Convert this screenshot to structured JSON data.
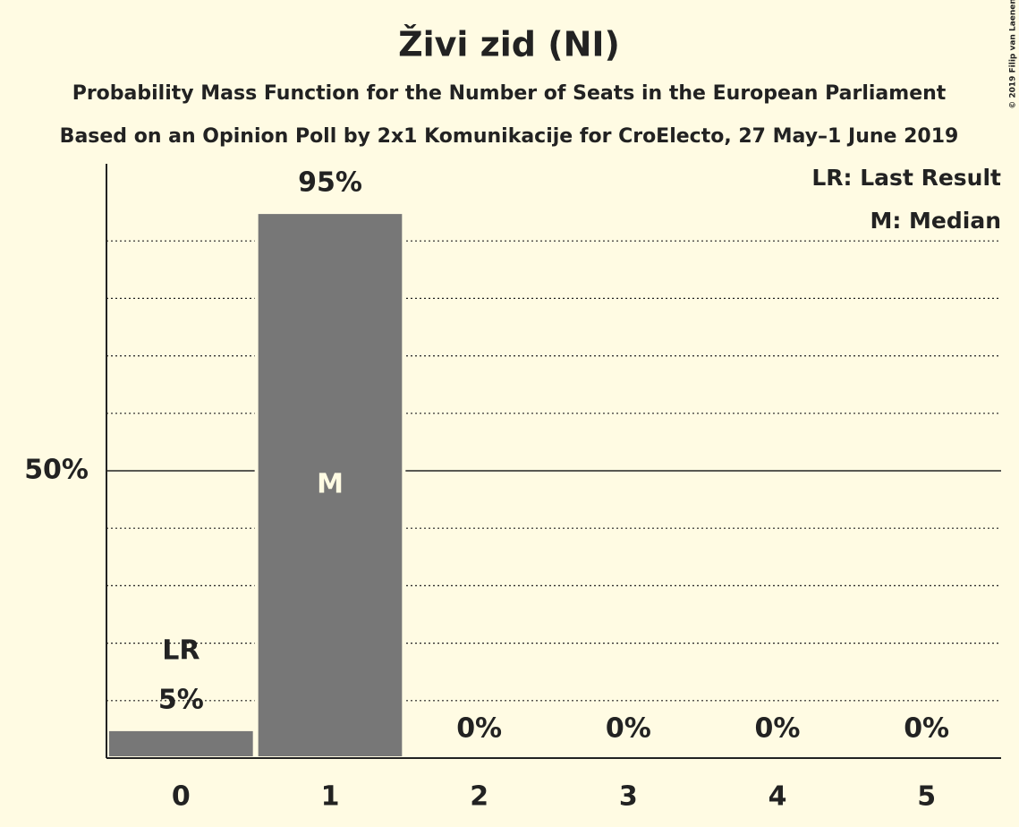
{
  "chart_data": {
    "type": "bar",
    "title": "Živi zid (NI)",
    "subtitle": "Probability Mass Function for the Number of Seats in the European Parliament",
    "subtitle2": "Based on an Opinion Poll by 2x1 Komunikacije for CroElecto, 27 May–1 June 2019",
    "copyright": "© 2019 Filip van Laenen",
    "x": [
      0,
      1,
      2,
      3,
      4,
      5
    ],
    "values": [
      5,
      95,
      0,
      0,
      0,
      0
    ],
    "value_labels": [
      "5%",
      "95%",
      "0%",
      "0%",
      "0%",
      "0%"
    ],
    "color": "#777777",
    "ylim": [
      0,
      100
    ],
    "yticks": [
      {
        "value": 50,
        "label": "50%"
      }
    ],
    "minor_grid": [
      10,
      20,
      30,
      40,
      60,
      70,
      80,
      90
    ],
    "annotations": [
      {
        "label": "LR",
        "x": 0,
        "position": "above"
      },
      {
        "label": "M",
        "x": 1,
        "position": "inside"
      }
    ],
    "legend": [
      "LR: Last Result",
      "M: Median"
    ],
    "legend_position": "top-right"
  }
}
